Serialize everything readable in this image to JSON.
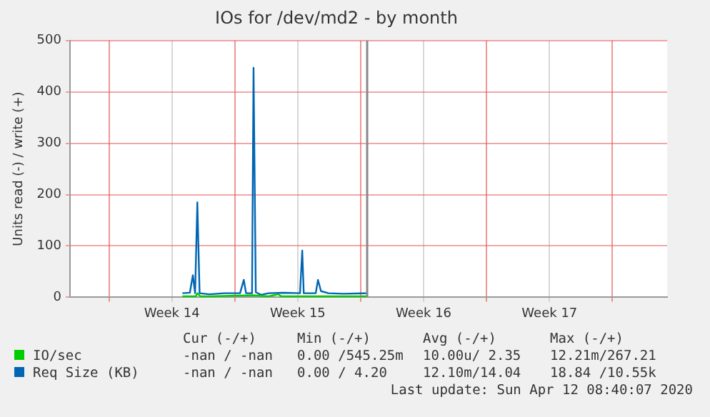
{
  "chart_data": {
    "type": "line",
    "title": "IOs for /dev/md2 - by month",
    "ylabel": "Units read (-) / write (+)",
    "xlim": [
      "2020-03-26T20:00",
      "2020-04-29T01:00"
    ],
    "xticks": [
      {
        "value": "2020-03-29",
        "label": null
      },
      {
        "value": "2020-04-01T12:00",
        "label": "Week 14"
      },
      {
        "value": "2020-04-05",
        "label": null
      },
      {
        "value": "2020-04-08T12:00",
        "label": "Week 15"
      },
      {
        "value": "2020-04-12",
        "label": null
      },
      {
        "value": "2020-04-15T12:00",
        "label": "Week 16"
      },
      {
        "value": "2020-04-19",
        "label": null
      },
      {
        "value": "2020-04-22T12:00",
        "label": "Week 17"
      },
      {
        "value": "2020-04-26",
        "label": null
      }
    ],
    "ylim": [
      0,
      500
    ],
    "yticks": [
      0,
      100,
      200,
      300,
      400,
      500
    ],
    "grid": true,
    "legend": "bottom",
    "marker": "none",
    "line_style": "solid",
    "series": [
      {
        "name": "IO/sec",
        "color": "#00cc00",
        "x": [
          "2020-04-02T02:00",
          "2020-04-02T20:00",
          "2020-04-02T22:00",
          "2020-04-03T02:00",
          "2020-04-03T14:00",
          "2020-04-06T01:00",
          "2020-04-06T21:00",
          "2020-04-07T10:00",
          "2020-04-07T14:00",
          "2020-04-09T10:00",
          "2020-04-12T08:40"
        ],
        "values": [
          2,
          2,
          8,
          2,
          2,
          4,
          2,
          6,
          2,
          2,
          2
        ]
      },
      {
        "name": "Req Size (KB)",
        "color": "#0066b3",
        "x": [
          "2020-04-02T02:00",
          "2020-04-02T12:00",
          "2020-04-02T16:00",
          "2020-04-02T19:00",
          "2020-04-02T22:00",
          "2020-04-03T01:00",
          "2020-04-03T14:00",
          "2020-04-04T10:00",
          "2020-04-05T07:00",
          "2020-04-05T12:00",
          "2020-04-05T15:00",
          "2020-04-05T23:00",
          "2020-04-06T01:00",
          "2020-04-06T04:00",
          "2020-04-06T11:00",
          "2020-04-06T21:00",
          "2020-04-07T17:00",
          "2020-04-08T15:00",
          "2020-04-08T18:00",
          "2020-04-08T20:00",
          "2020-04-09T12:00",
          "2020-04-09T15:00",
          "2020-04-09T19:00",
          "2020-04-10T05:00",
          "2020-04-11T01:00",
          "2020-04-12T08:40"
        ],
        "values": [
          8,
          9,
          43,
          8,
          185,
          8,
          6,
          8,
          8,
          34,
          8,
          8,
          447,
          10,
          5,
          8,
          9,
          8,
          91,
          8,
          8,
          34,
          12,
          8,
          7,
          8
        ]
      }
    ],
    "ref_lines": [
      {
        "axis": "x",
        "value": "2020-04-12T08:40",
        "color": "#888888"
      }
    ],
    "annotations": [
      "Cur (-/+)",
      "Min (-/+)",
      "Avg (-/+)",
      "Max (-/+)",
      "-nan / -nan",
      "0.00 /545.25m",
      "10.00u/ 2.35",
      "12.21m/267.21",
      "-nan / -nan",
      "0.00 / 4.20",
      "12.10m/14.04",
      "18.84 /10.55k",
      "Last update: Sun Apr 12 08:40:07 2020"
    ]
  }
}
